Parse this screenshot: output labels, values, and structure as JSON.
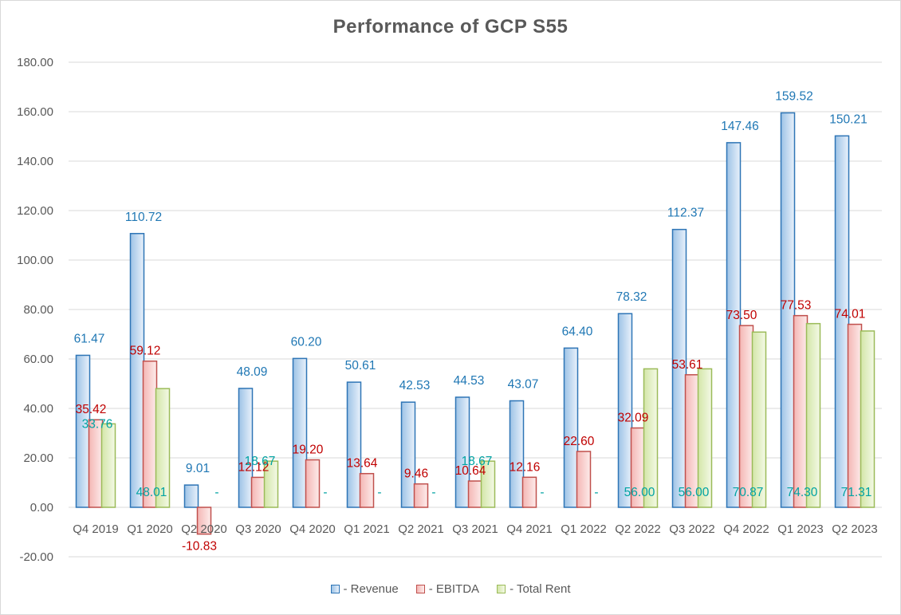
{
  "chart_data": {
    "type": "bar",
    "title": "Performance of GCP S55",
    "xlabel": "",
    "ylabel": "",
    "ylim": [
      -20,
      180
    ],
    "yticks": [
      "-20.00",
      "0.00",
      "20.00",
      "40.00",
      "60.00",
      "80.00",
      "100.00",
      "120.00",
      "140.00",
      "160.00",
      "180.00"
    ],
    "grid": true,
    "legend_position": "bottom",
    "categories": [
      "Q4 2019",
      "Q1 2020",
      "Q2 2020",
      "Q3 2020",
      "Q4 2020",
      "Q1 2021",
      "Q2 2021",
      "Q3 2021",
      "Q4 2021",
      "Q1 2022",
      "Q2 2022",
      "Q3 2022",
      "Q4 2022",
      "Q1 2023",
      "Q2 2023"
    ],
    "series": [
      {
        "name": "- Revenue",
        "color": "#2e75b6",
        "label_color": "#1f77b4",
        "values": [
          61.47,
          110.72,
          9.01,
          48.09,
          60.2,
          50.61,
          42.53,
          44.53,
          43.07,
          64.4,
          78.32,
          112.37,
          147.46,
          159.52,
          150.21
        ],
        "labels": [
          "61.47",
          "110.72",
          "9.01",
          "48.09",
          "60.20",
          "50.61",
          "42.53",
          "44.53",
          "43.07",
          "64.40",
          "78.32",
          "112.37",
          "147.46",
          "159.52",
          "150.21"
        ]
      },
      {
        "name": "- EBITDA",
        "color": "#c0504d",
        "label_color": "#c00000",
        "values": [
          35.42,
          59.12,
          -10.83,
          12.12,
          19.2,
          13.64,
          9.46,
          10.64,
          12.16,
          22.6,
          32.09,
          53.61,
          73.5,
          77.53,
          74.01
        ],
        "labels": [
          "35.42",
          "59.12",
          "-10.83",
          "12.12",
          "19.20",
          "13.64",
          "9.46",
          "10.64",
          "12.16",
          "22.60",
          "32.09",
          "53.61",
          "73.50",
          "77.53",
          "74.01"
        ]
      },
      {
        "name": "- Total Rent",
        "color": "#9bbb59",
        "label_color": "#00a3a3",
        "values": [
          33.76,
          48.01,
          0,
          18.67,
          0,
          0,
          0,
          18.67,
          0,
          0,
          56.0,
          56.0,
          70.87,
          74.3,
          71.31
        ],
        "labels": [
          "33.76",
          "48.01",
          "-",
          "18.67",
          "-",
          "-",
          "-",
          "18.67",
          "-",
          "-",
          "56.00",
          "56.00",
          "70.87",
          "74.30",
          "71.31"
        ]
      }
    ]
  }
}
